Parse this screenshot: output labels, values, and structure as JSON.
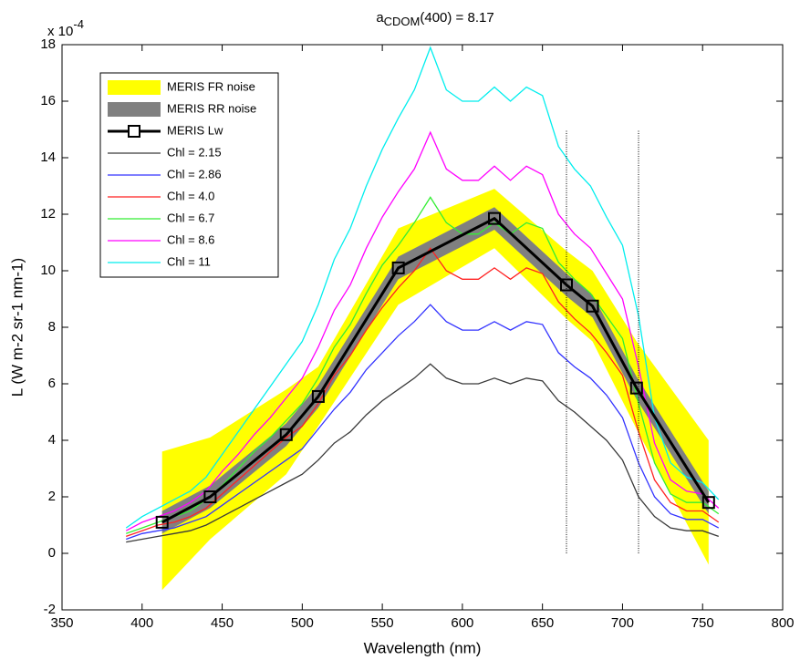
{
  "chart_data": {
    "type": "line",
    "title": {
      "base": "a",
      "subscript": "CDOM",
      "rest": "(400) = 8.17"
    },
    "xlabel": "Wavelength (nm)",
    "ylabel": "L (W m-2 sr-1 nm-1)",
    "y_multiplier": {
      "base": "x 10",
      "exponent": "-4"
    },
    "xlim": [
      350,
      800
    ],
    "xticks": [
      350,
      400,
      450,
      500,
      550,
      600,
      650,
      700,
      750,
      800
    ],
    "ylim": [
      -2,
      18
    ],
    "yticks": [
      -2,
      0,
      2,
      4,
      6,
      8,
      10,
      12,
      14,
      16,
      18
    ],
    "legend": "northwest",
    "vlines": [
      665,
      710
    ],
    "vline_span": [
      0,
      15
    ],
    "series": [
      {
        "name": "MERIS FR noise",
        "kind": "band",
        "color": "#ffff00",
        "x": [
          412.5,
          442.5,
          490,
          510,
          560,
          620,
          665,
          681.25,
          708.75,
          753.75
        ],
        "lower": [
          -1.3,
          0.5,
          2.8,
          4.5,
          8.8,
          10.8,
          8.3,
          7.5,
          4.4,
          -0.4
        ],
        "upper": [
          3.6,
          4.1,
          5.8,
          6.6,
          11.5,
          12.9,
          10.7,
          10.0,
          7.5,
          4.0
        ]
      },
      {
        "name": "MERIS RR noise",
        "kind": "band",
        "color": "#808080",
        "x": [
          412.5,
          442.5,
          490,
          510,
          560,
          620,
          665,
          681.25,
          708.75,
          753.75
        ],
        "lower": [
          0.7,
          1.6,
          3.8,
          5.15,
          9.7,
          11.45,
          9.1,
          8.35,
          5.45,
          1.4
        ],
        "upper": [
          1.5,
          2.4,
          4.6,
          5.95,
          10.5,
          12.25,
          9.9,
          9.15,
          6.25,
          2.2
        ]
      },
      {
        "name": "MERIS Lw",
        "kind": "marker-line",
        "color": "#000000",
        "x": [
          412.5,
          442.5,
          490,
          510,
          560,
          620,
          665,
          681.25,
          708.75,
          753.75
        ],
        "values": [
          1.1,
          2.0,
          4.2,
          5.55,
          10.1,
          11.85,
          9.5,
          8.75,
          5.85,
          1.8
        ]
      },
      {
        "name": "Chl = 2.15",
        "kind": "line",
        "color": "#3a3a3a",
        "x": [
          390,
          400,
          410,
          420,
          430,
          440,
          450,
          460,
          470,
          480,
          490,
          500,
          510,
          520,
          530,
          540,
          550,
          560,
          570,
          580,
          590,
          600,
          610,
          620,
          630,
          640,
          650,
          660,
          670,
          680,
          690,
          700,
          710,
          720,
          730,
          740,
          750,
          760
        ],
        "values": [
          0.4,
          0.5,
          0.6,
          0.7,
          0.8,
          1.0,
          1.3,
          1.6,
          1.9,
          2.2,
          2.5,
          2.8,
          3.3,
          3.9,
          4.3,
          4.9,
          5.4,
          5.8,
          6.2,
          6.7,
          6.2,
          6.0,
          6.0,
          6.2,
          6.0,
          6.2,
          6.1,
          5.4,
          5.0,
          4.5,
          4.0,
          3.3,
          2.0,
          1.3,
          0.9,
          0.8,
          0.8,
          0.6
        ]
      },
      {
        "name": "Chl = 2.86",
        "kind": "line",
        "color": "#3333ff",
        "x": [
          390,
          400,
          410,
          420,
          430,
          440,
          450,
          460,
          470,
          480,
          490,
          500,
          510,
          520,
          530,
          540,
          550,
          560,
          570,
          580,
          590,
          600,
          610,
          620,
          630,
          640,
          650,
          660,
          670,
          680,
          690,
          700,
          710,
          720,
          730,
          740,
          750,
          760
        ],
        "values": [
          0.5,
          0.7,
          0.8,
          0.9,
          1.1,
          1.3,
          1.7,
          2.1,
          2.5,
          2.9,
          3.3,
          3.7,
          4.4,
          5.1,
          5.7,
          6.5,
          7.1,
          7.7,
          8.2,
          8.8,
          8.2,
          7.9,
          7.9,
          8.2,
          7.9,
          8.2,
          8.1,
          7.1,
          6.6,
          6.2,
          5.6,
          4.8,
          3.2,
          2.0,
          1.4,
          1.2,
          1.2,
          0.9
        ]
      },
      {
        "name": "Chl = 4.0",
        "kind": "line",
        "color": "#ff2222",
        "x": [
          390,
          400,
          410,
          420,
          430,
          440,
          450,
          460,
          470,
          480,
          490,
          500,
          510,
          520,
          530,
          540,
          550,
          560,
          570,
          580,
          590,
          600,
          610,
          620,
          630,
          640,
          650,
          660,
          670,
          680,
          690,
          700,
          710,
          720,
          730,
          740,
          750,
          760
        ],
        "values": [
          0.6,
          0.8,
          1.0,
          1.1,
          1.3,
          1.6,
          2.1,
          2.6,
          3.1,
          3.6,
          4.1,
          4.5,
          5.3,
          6.3,
          7.0,
          7.9,
          8.7,
          9.4,
          10.0,
          10.8,
          10.0,
          9.7,
          9.7,
          10.1,
          9.7,
          10.1,
          9.9,
          8.9,
          8.3,
          7.8,
          7.1,
          6.3,
          4.3,
          2.6,
          1.8,
          1.5,
          1.5,
          1.1
        ]
      },
      {
        "name": "Chl = 6.7",
        "kind": "line",
        "color": "#33ee33",
        "x": [
          390,
          400,
          410,
          420,
          430,
          440,
          450,
          460,
          470,
          480,
          490,
          500,
          510,
          520,
          530,
          540,
          550,
          560,
          570,
          580,
          590,
          600,
          610,
          620,
          630,
          640,
          650,
          660,
          670,
          680,
          690,
          700,
          710,
          720,
          730,
          740,
          750,
          760
        ],
        "values": [
          0.7,
          0.9,
          1.1,
          1.3,
          1.5,
          1.9,
          2.4,
          3.0,
          3.6,
          4.1,
          4.7,
          5.3,
          6.2,
          7.3,
          8.1,
          9.2,
          10.2,
          10.9,
          11.7,
          12.6,
          11.7,
          11.3,
          11.3,
          11.7,
          11.3,
          11.7,
          11.5,
          10.3,
          9.7,
          9.2,
          8.4,
          7.6,
          5.3,
          3.2,
          2.1,
          1.8,
          1.8,
          1.4
        ]
      },
      {
        "name": "Chl = 8.6",
        "kind": "line",
        "color": "#ff00ff",
        "x": [
          390,
          400,
          410,
          420,
          430,
          440,
          450,
          460,
          470,
          480,
          490,
          500,
          510,
          520,
          530,
          540,
          550,
          560,
          570,
          580,
          590,
          600,
          610,
          620,
          630,
          640,
          650,
          660,
          670,
          680,
          690,
          700,
          710,
          720,
          730,
          740,
          750,
          760
        ],
        "values": [
          0.8,
          1.1,
          1.3,
          1.5,
          1.8,
          2.2,
          2.9,
          3.5,
          4.2,
          4.8,
          5.5,
          6.2,
          7.3,
          8.6,
          9.5,
          10.8,
          11.9,
          12.8,
          13.6,
          14.9,
          13.6,
          13.2,
          13.2,
          13.7,
          13.2,
          13.7,
          13.4,
          12.0,
          11.3,
          10.8,
          9.9,
          9.0,
          6.6,
          3.9,
          2.6,
          2.2,
          2.1,
          1.6
        ]
      },
      {
        "name": "Chl = 11",
        "kind": "line",
        "color": "#00eeee",
        "x": [
          390,
          400,
          410,
          420,
          430,
          440,
          450,
          460,
          470,
          480,
          490,
          500,
          510,
          520,
          530,
          540,
          550,
          560,
          570,
          580,
          590,
          600,
          610,
          620,
          630,
          640,
          650,
          660,
          670,
          680,
          690,
          700,
          710,
          720,
          730,
          740,
          750,
          760
        ],
        "values": [
          0.9,
          1.3,
          1.6,
          1.9,
          2.2,
          2.7,
          3.5,
          4.3,
          5.1,
          5.9,
          6.7,
          7.5,
          8.8,
          10.4,
          11.5,
          13.0,
          14.3,
          15.4,
          16.4,
          17.9,
          16.4,
          16.0,
          16.0,
          16.5,
          16.0,
          16.5,
          16.2,
          14.4,
          13.6,
          13.0,
          11.9,
          10.9,
          8.4,
          4.8,
          3.2,
          2.7,
          2.5,
          1.9
        ]
      }
    ]
  }
}
